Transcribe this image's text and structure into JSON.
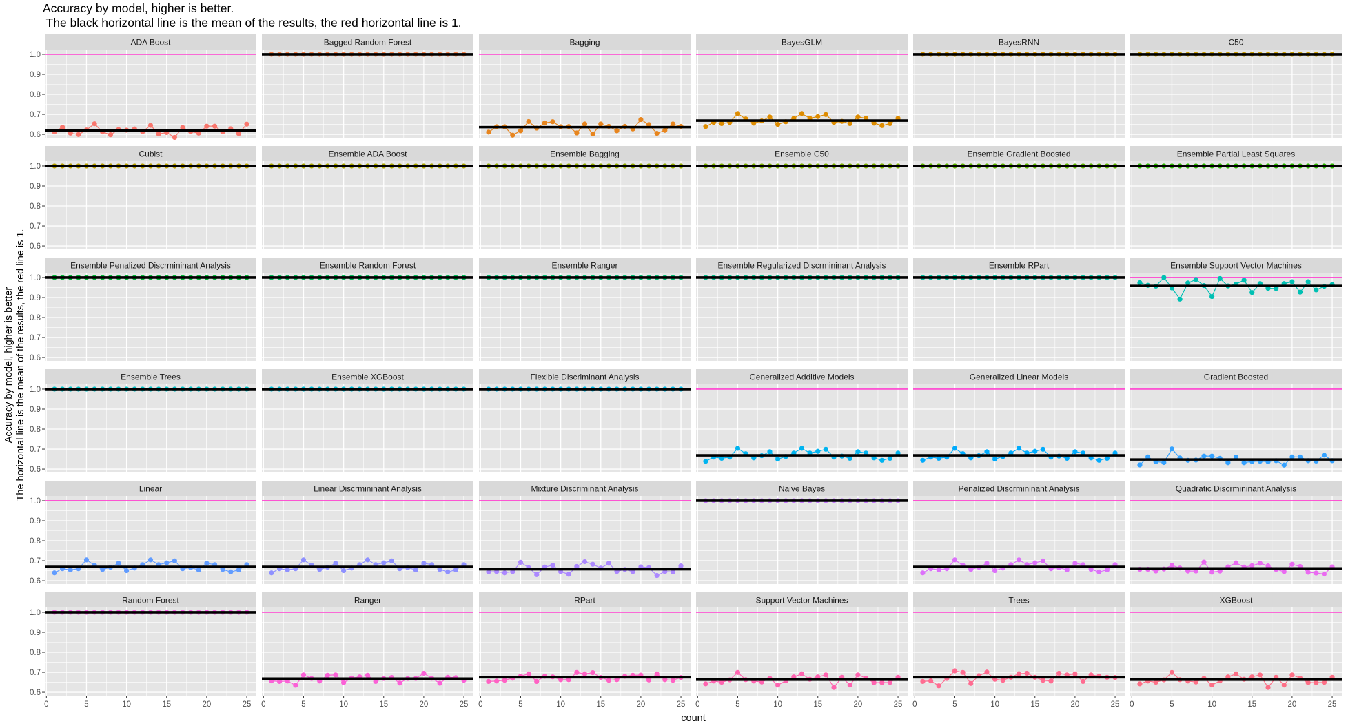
{
  "chart_data": {
    "type": "line",
    "title": "Accuracy by model, higher is better.",
    "subtitle": " The black horizontal line is the mean of the results, the red horizontal line is 1.",
    "xlabel": "count",
    "ylabel": "Accuracy by model, higher is better",
    "ylabel2": "The horizontal line is the mean of the results, the red line is 1.",
    "x": [
      1,
      2,
      3,
      4,
      5,
      6,
      7,
      8,
      9,
      10,
      11,
      12,
      13,
      14,
      15,
      16,
      17,
      18,
      19,
      20,
      21,
      22,
      23,
      24,
      25
    ],
    "xlim": [
      -0.2,
      26.2
    ],
    "ylim": [
      0.583,
      1.024
    ],
    "x_ticks": [
      "0",
      "5",
      "10",
      "15",
      "20",
      "25"
    ],
    "y_ticks": [
      "0.6",
      "0.7",
      "0.8",
      "0.9",
      "1.0"
    ],
    "grid": true,
    "facet_layout": "6x6",
    "reference_line": 1,
    "colors": {
      "reference_line": "#FF3ECF",
      "mean_line": "#000000",
      "panel_bg": "#E5E5E5",
      "strip_bg": "#D9D9D9",
      "grid": "#FFFFFF"
    },
    "panels": [
      {
        "title": "ADA Boost",
        "color": "#F8766D",
        "mean": 0.62,
        "values": [
          0.612,
          0.636,
          0.606,
          0.599,
          0.622,
          0.653,
          0.612,
          0.598,
          0.624,
          0.621,
          0.627,
          0.613,
          0.645,
          0.602,
          0.609,
          0.585,
          0.634,
          0.614,
          0.606,
          0.641,
          0.641,
          0.612,
          0.628,
          0.604,
          0.651
        ]
      },
      {
        "title": "Bagged Random Forest",
        "color": "#EF7F49",
        "mean": 1,
        "values": [
          1,
          1,
          1,
          1,
          1,
          1,
          1,
          1,
          1,
          1,
          1,
          1,
          1,
          1,
          1,
          1,
          1,
          1,
          1,
          1,
          1,
          1,
          1,
          1,
          1
        ]
      },
      {
        "title": "Bagging",
        "color": "#E7851E",
        "mean": 0.636,
        "values": [
          0.611,
          0.638,
          0.638,
          0.596,
          0.618,
          0.664,
          0.631,
          0.657,
          0.663,
          0.638,
          0.639,
          0.607,
          0.652,
          0.602,
          0.652,
          0.64,
          0.618,
          0.64,
          0.627,
          0.674,
          0.649,
          0.605,
          0.62,
          0.652,
          0.64
        ]
      },
      {
        "title": "BayesGLM",
        "color": "#DE8C00",
        "mean": 0.669,
        "values": [
          0.639,
          0.66,
          0.654,
          0.66,
          0.704,
          0.677,
          0.656,
          0.667,
          0.687,
          0.65,
          0.663,
          0.68,
          0.704,
          0.68,
          0.689,
          0.699,
          0.66,
          0.665,
          0.654,
          0.687,
          0.68,
          0.656,
          0.644,
          0.654,
          0.68
        ]
      },
      {
        "title": "BayesRNN",
        "color": "#D49200",
        "mean": 1,
        "values": [
          1,
          1,
          1,
          1,
          1,
          1,
          1,
          1,
          1,
          1,
          1,
          1,
          1,
          1,
          1,
          1,
          1,
          1,
          1,
          1,
          1,
          1,
          1,
          1,
          1
        ]
      },
      {
        "title": "C50",
        "color": "#C59900",
        "mean": 1,
        "values": [
          1,
          1,
          1,
          1,
          1,
          1,
          1,
          1,
          1,
          1,
          1,
          1,
          1,
          1,
          1,
          1,
          1,
          1,
          1,
          1,
          1,
          1,
          1,
          1,
          1
        ]
      },
      {
        "title": "Cubist",
        "color": "#B79F00",
        "mean": 1,
        "values": [
          1,
          1,
          1,
          1,
          1,
          1,
          1,
          1,
          1,
          1,
          1,
          1,
          1,
          1,
          1,
          1,
          1,
          1,
          1,
          1,
          1,
          1,
          1,
          1,
          1
        ]
      },
      {
        "title": "Ensemble ADA Boost",
        "color": "#A8A400",
        "mean": 1,
        "values": [
          1,
          1,
          1,
          1,
          1,
          1,
          1,
          1,
          1,
          1,
          1,
          1,
          1,
          1,
          1,
          1,
          1,
          1,
          1,
          1,
          1,
          1,
          1,
          1,
          1
        ]
      },
      {
        "title": "Ensemble Bagging",
        "color": "#93AA00",
        "mean": 1,
        "values": [
          1,
          1,
          1,
          1,
          1,
          1,
          1,
          1,
          1,
          1,
          1,
          1,
          1,
          1,
          1,
          1,
          1,
          1,
          1,
          1,
          1,
          1,
          1,
          1,
          1
        ]
      },
      {
        "title": "Ensemble C50",
        "color": "#7CAE00",
        "mean": 1,
        "values": [
          1,
          1,
          1,
          1,
          1,
          1,
          1,
          1,
          1,
          1,
          1,
          1,
          1,
          1,
          1,
          1,
          1,
          1,
          1,
          1,
          1,
          1,
          1,
          1,
          1
        ]
      },
      {
        "title": "Ensemble Gradient Boosted",
        "color": "#5EB300",
        "mean": 1,
        "values": [
          1,
          1,
          1,
          1,
          1,
          1,
          1,
          1,
          1,
          1,
          1,
          1,
          1,
          1,
          1,
          1,
          1,
          1,
          1,
          1,
          1,
          1,
          1,
          1,
          1
        ]
      },
      {
        "title": "Ensemble Partial Least Squares",
        "color": "#2EB600",
        "mean": 1,
        "values": [
          1,
          1,
          1,
          1,
          1,
          1,
          1,
          1,
          1,
          1,
          1,
          1,
          1,
          1,
          1,
          1,
          1,
          1,
          1,
          1,
          1,
          1,
          1,
          1,
          1
        ]
      },
      {
        "title": "Ensemble Penalized Discrmininant Analysis",
        "color": "#00BA38",
        "mean": 1,
        "values": [
          1,
          1,
          1,
          1,
          1,
          1,
          1,
          1,
          1,
          1,
          1,
          1,
          1,
          1,
          1,
          1,
          1,
          1,
          1,
          1,
          1,
          1,
          1,
          1,
          1
        ]
      },
      {
        "title": "Ensemble Random Forest",
        "color": "#00BC59",
        "mean": 1,
        "values": [
          1,
          1,
          1,
          1,
          1,
          1,
          1,
          1,
          1,
          1,
          1,
          1,
          1,
          1,
          1,
          1,
          1,
          1,
          1,
          1,
          1,
          1,
          1,
          1,
          1
        ]
      },
      {
        "title": "Ensemble Ranger",
        "color": "#00BF74",
        "mean": 1,
        "values": [
          1,
          1,
          1,
          1,
          1,
          1,
          1,
          1,
          1,
          1,
          1,
          1,
          1,
          1,
          1,
          1,
          1,
          1,
          1,
          1,
          1,
          1,
          1,
          1,
          1
        ]
      },
      {
        "title": "Ensemble Regularized Discrmininant Analysis",
        "color": "#00C08B",
        "mean": 1,
        "values": [
          1,
          1,
          1,
          1,
          1,
          1,
          1,
          1,
          1,
          1,
          1,
          1,
          1,
          1,
          1,
          1,
          1,
          1,
          1,
          1,
          1,
          1,
          1,
          1,
          1
        ]
      },
      {
        "title": "Ensemble RPart",
        "color": "#00C1A0",
        "mean": 1,
        "values": [
          1,
          1,
          1,
          1,
          1,
          1,
          1,
          1,
          1,
          1,
          1,
          1,
          1,
          1,
          1,
          1,
          1,
          1,
          1,
          1,
          1,
          1,
          1,
          1,
          1
        ]
      },
      {
        "title": "Ensemble Support Vector Machines",
        "color": "#00C0B3",
        "mean": 0.958,
        "values": [
          0.974,
          0.961,
          0.957,
          1.0,
          0.948,
          0.892,
          0.973,
          0.99,
          0.96,
          0.905,
          0.995,
          0.958,
          0.967,
          0.987,
          0.925,
          0.97,
          0.946,
          0.945,
          0.97,
          0.979,
          0.927,
          0.979,
          0.938,
          0.956,
          0.965
        ]
      },
      {
        "title": "Ensemble Trees",
        "color": "#00BFC4",
        "mean": 1,
        "values": [
          1,
          1,
          1,
          1,
          1,
          1,
          1,
          1,
          1,
          1,
          1,
          1,
          1,
          1,
          1,
          1,
          1,
          1,
          1,
          1,
          1,
          1,
          1,
          1,
          1
        ]
      },
      {
        "title": "Ensemble XGBoost",
        "color": "#00BCD5",
        "mean": 1,
        "values": [
          1,
          1,
          1,
          1,
          1,
          1,
          1,
          1,
          1,
          1,
          1,
          1,
          1,
          1,
          1,
          1,
          1,
          1,
          1,
          1,
          1,
          1,
          1,
          1,
          1
        ]
      },
      {
        "title": "Flexible Discriminant Analysis",
        "color": "#00B8E4",
        "mean": 1,
        "values": [
          1,
          1,
          1,
          1,
          1,
          1,
          1,
          1,
          1,
          1,
          1,
          1,
          1,
          1,
          1,
          1,
          1,
          1,
          1,
          1,
          1,
          1,
          1,
          1,
          1
        ]
      },
      {
        "title": "Generalized Additive Models",
        "color": "#00B4F0",
        "mean": 0.669,
        "values": [
          0.639,
          0.66,
          0.654,
          0.66,
          0.704,
          0.677,
          0.656,
          0.667,
          0.687,
          0.65,
          0.663,
          0.68,
          0.704,
          0.68,
          0.689,
          0.699,
          0.66,
          0.665,
          0.654,
          0.687,
          0.68,
          0.656,
          0.644,
          0.654,
          0.68
        ]
      },
      {
        "title": "Generalized Linear Models",
        "color": "#00ABFD",
        "mean": 0.669,
        "values": [
          0.644,
          0.66,
          0.654,
          0.66,
          0.704,
          0.677,
          0.656,
          0.667,
          0.687,
          0.65,
          0.663,
          0.68,
          0.704,
          0.68,
          0.689,
          0.699,
          0.66,
          0.665,
          0.654,
          0.687,
          0.68,
          0.656,
          0.644,
          0.654,
          0.68
        ]
      },
      {
        "title": "Gradient Boosted",
        "color": "#35A2FF",
        "mean": 0.648,
        "values": [
          0.621,
          0.661,
          0.637,
          0.633,
          0.701,
          0.656,
          0.644,
          0.645,
          0.665,
          0.665,
          0.654,
          0.632,
          0.66,
          0.632,
          0.638,
          0.639,
          0.637,
          0.642,
          0.62,
          0.661,
          0.661,
          0.642,
          0.64,
          0.67,
          0.642
        ]
      },
      {
        "title": "Linear",
        "color": "#619CFF",
        "mean": 0.669,
        "values": [
          0.639,
          0.66,
          0.654,
          0.66,
          0.704,
          0.677,
          0.656,
          0.667,
          0.687,
          0.65,
          0.663,
          0.68,
          0.704,
          0.68,
          0.689,
          0.699,
          0.66,
          0.665,
          0.654,
          0.687,
          0.68,
          0.656,
          0.644,
          0.654,
          0.68
        ]
      },
      {
        "title": "Linear Discrmininant Analysis",
        "color": "#8F91FF",
        "mean": 0.669,
        "values": [
          0.639,
          0.66,
          0.654,
          0.66,
          0.704,
          0.677,
          0.656,
          0.667,
          0.687,
          0.65,
          0.663,
          0.68,
          0.704,
          0.68,
          0.689,
          0.699,
          0.66,
          0.665,
          0.654,
          0.687,
          0.68,
          0.656,
          0.644,
          0.654,
          0.68
        ]
      },
      {
        "title": "Mixture Discriminant Analysis",
        "color": "#AC88FF",
        "mean": 0.657,
        "values": [
          0.644,
          0.645,
          0.639,
          0.645,
          0.692,
          0.665,
          0.63,
          0.668,
          0.677,
          0.645,
          0.632,
          0.671,
          0.695,
          0.682,
          0.663,
          0.687,
          0.646,
          0.656,
          0.645,
          0.669,
          0.665,
          0.626,
          0.645,
          0.644,
          0.674
        ]
      },
      {
        "title": "Naive Bayes",
        "color": "#C77CFF",
        "mean": 1,
        "values": [
          1,
          1,
          1,
          1,
          1,
          1,
          1,
          1,
          1,
          1,
          1,
          1,
          1,
          1,
          1,
          1,
          1,
          1,
          1,
          1,
          1,
          1,
          1,
          1,
          1
        ]
      },
      {
        "title": "Penalized Discrmininant Analysis",
        "color": "#DC71FA",
        "mean": 0.669,
        "values": [
          0.639,
          0.66,
          0.654,
          0.66,
          0.704,
          0.677,
          0.656,
          0.667,
          0.687,
          0.65,
          0.663,
          0.68,
          0.704,
          0.68,
          0.689,
          0.699,
          0.66,
          0.665,
          0.654,
          0.687,
          0.68,
          0.656,
          0.644,
          0.654,
          0.68
        ]
      },
      {
        "title": "Quadratic Discrmininant Analysis",
        "color": "#EA6AF1",
        "mean": 0.661,
        "values": [
          0.657,
          0.657,
          0.648,
          0.658,
          0.677,
          0.663,
          0.648,
          0.648,
          0.693,
          0.642,
          0.648,
          0.669,
          0.689,
          0.668,
          0.675,
          0.687,
          0.674,
          0.656,
          0.645,
          0.682,
          0.671,
          0.642,
          0.638,
          0.633,
          0.669
        ]
      },
      {
        "title": "Random Forest",
        "color": "#F564E3",
        "mean": 1,
        "values": [
          1,
          1,
          1,
          1,
          1,
          1,
          1,
          1,
          1,
          1,
          1,
          1,
          1,
          1,
          1,
          1,
          1,
          1,
          1,
          1,
          1,
          1,
          1,
          1,
          1
        ]
      },
      {
        "title": "Ranger",
        "color": "#FB61D7",
        "mean": 0.668,
        "values": [
          0.657,
          0.654,
          0.656,
          0.635,
          0.687,
          0.669,
          0.656,
          0.685,
          0.687,
          0.648,
          0.671,
          0.677,
          0.685,
          0.654,
          0.669,
          0.674,
          0.646,
          0.669,
          0.669,
          0.695,
          0.67,
          0.645,
          0.675,
          0.673,
          0.66
        ]
      },
      {
        "title": "RPart",
        "color": "#FF62C4",
        "mean": 0.675,
        "values": [
          0.654,
          0.656,
          0.66,
          0.67,
          0.681,
          0.692,
          0.654,
          0.68,
          0.677,
          0.663,
          0.663,
          0.699,
          0.692,
          0.698,
          0.674,
          0.66,
          0.663,
          0.68,
          0.685,
          0.686,
          0.661,
          0.692,
          0.663,
          0.66,
          0.674
        ]
      },
      {
        "title": "Support Vector Machines",
        "color": "#FF64B0",
        "mean": 0.663,
        "values": [
          0.642,
          0.656,
          0.65,
          0.662,
          0.699,
          0.663,
          0.656,
          0.651,
          0.67,
          0.636,
          0.657,
          0.677,
          0.692,
          0.665,
          0.677,
          0.687,
          0.624,
          0.675,
          0.636,
          0.687,
          0.671,
          0.648,
          0.648,
          0.649,
          0.675
        ]
      },
      {
        "title": "Trees",
        "color": "#FF6C91",
        "mean": 0.675,
        "values": [
          0.654,
          0.657,
          0.632,
          0.669,
          0.707,
          0.699,
          0.644,
          0.683,
          0.701,
          0.665,
          0.66,
          0.675,
          0.693,
          0.695,
          0.675,
          0.66,
          0.656,
          0.695,
          0.687,
          0.692,
          0.654,
          0.687,
          0.68,
          0.675,
          0.674
        ]
      },
      {
        "title": "XGBoost",
        "color": "#FD6F86",
        "mean": 0.663,
        "values": [
          0.642,
          0.656,
          0.65,
          0.662,
          0.699,
          0.663,
          0.656,
          0.651,
          0.67,
          0.636,
          0.657,
          0.677,
          0.692,
          0.665,
          0.677,
          0.687,
          0.624,
          0.675,
          0.636,
          0.687,
          0.671,
          0.648,
          0.648,
          0.649,
          0.675
        ]
      }
    ]
  }
}
